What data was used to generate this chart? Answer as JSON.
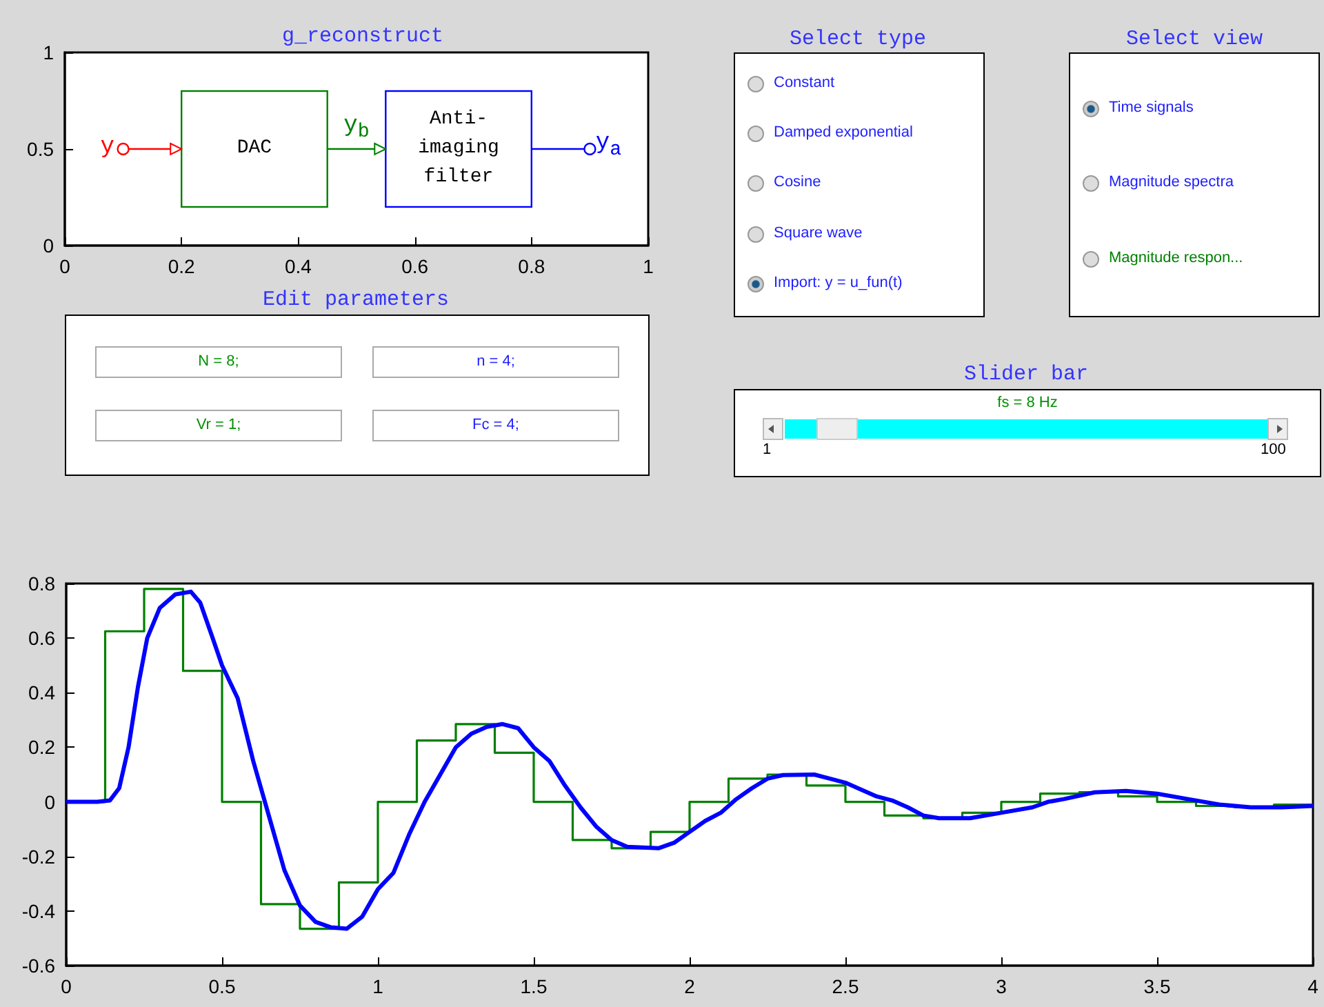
{
  "chart_data": [
    {
      "type": "line",
      "title": "g_reconstruct",
      "xlim": [
        0,
        1
      ],
      "ylim": [
        0,
        1
      ],
      "xticks": [
        0,
        0.2,
        0.4,
        0.6,
        0.8,
        1
      ],
      "yticks": [
        0,
        0.5,
        1
      ],
      "annotations": [
        "y",
        "DAC",
        "y$_{b}$",
        "Anti-\nimaging\nfilter",
        "y$_{a}$"
      ]
    },
    {
      "type": "other",
      "title": "Select type",
      "annotations": [
        "Constant",
        "Damped exponential",
        "Cosine",
        "Square wave",
        "Import: y = u_fun(t)"
      ]
    },
    {
      "type": "other",
      "title": "Select view",
      "annotations": [
        "Time signals",
        "Magnitude spectra",
        "Magnitude respon..."
      ]
    },
    {
      "type": "other",
      "title": "Edit parameters",
      "annotations": [
        "N = 8;",
        "n = 4;",
        "Vr = 1;",
        "Fc = 4;"
      ]
    },
    {
      "type": "other",
      "title": "Slider bar",
      "annotations": [
        "fs = 8 Hz",
        "1",
        "100"
      ]
    },
    {
      "type": "line",
      "xlim": [
        0,
        4
      ],
      "ylim": [
        -0.6,
        0.8
      ],
      "xticks": [
        0,
        0.5,
        1,
        1.5,
        2,
        2.5,
        3,
        3.5,
        4
      ],
      "yticks": [
        -0.6,
        -0.4,
        -0.2,
        0,
        0.2,
        0.4,
        0.6,
        0.8
      ],
      "grid": false,
      "marker": "none",
      "series": [
        {
          "type": "step",
          "color": "#008000",
          "x": [
            0,
            0.125,
            0.25,
            0.375,
            0.5,
            0.625,
            0.75,
            0.875,
            1,
            1.125,
            1.25,
            1.375,
            1.5,
            1.625,
            1.75,
            1.875,
            2,
            2.125,
            2.25,
            2.375,
            2.5,
            2.625,
            2.75,
            2.875,
            3,
            3.125,
            3.25,
            3.375,
            3.5,
            3.625,
            3.75,
            3.875,
            4
          ],
          "values": [
            0,
            0.625,
            0.78,
            0.48,
            0,
            -0.375,
            -0.465,
            -0.295,
            0,
            0.225,
            0.285,
            0.18,
            0,
            -0.14,
            -0.17,
            -0.11,
            0,
            0.085,
            0.1,
            0.06,
            0,
            -0.05,
            -0.06,
            -0.04,
            0,
            0.03,
            0.035,
            0.02,
            0,
            -0.015,
            -0.02,
            -0.01,
            -0.01
          ]
        },
        {
          "type": "line",
          "color": "#0000ff",
          "x": [
            0,
            0.1,
            0.14,
            0.17,
            0.2,
            0.23,
            0.26,
            0.3,
            0.35,
            0.4,
            0.43,
            0.47,
            0.5,
            0.55,
            0.6,
            0.65,
            0.7,
            0.75,
            0.8,
            0.85,
            0.9,
            0.95,
            1,
            1.05,
            1.1,
            1.15,
            1.2,
            1.25,
            1.3,
            1.35,
            1.4,
            1.45,
            1.5,
            1.55,
            1.6,
            1.65,
            1.7,
            1.75,
            1.8,
            1.9,
            1.95,
            2,
            2.05,
            2.1,
            2.15,
            2.2,
            2.25,
            2.3,
            2.4,
            2.45,
            2.5,
            2.55,
            2.6,
            2.65,
            2.7,
            2.75,
            2.8,
            2.9,
            3,
            3.1,
            3.15,
            3.2,
            3.3,
            3.4,
            3.5,
            3.6,
            3.7,
            3.8,
            3.9,
            4
          ],
          "values": [
            0,
            0,
            0.005,
            0.05,
            0.2,
            0.42,
            0.6,
            0.71,
            0.76,
            0.77,
            0.73,
            0.6,
            0.5,
            0.38,
            0.15,
            -0.05,
            -0.25,
            -0.38,
            -0.44,
            -0.46,
            -0.465,
            -0.42,
            -0.32,
            -0.26,
            -0.12,
            0,
            0.1,
            0.2,
            0.25,
            0.275,
            0.285,
            0.27,
            0.2,
            0.15,
            0.06,
            -0.02,
            -0.09,
            -0.14,
            -0.165,
            -0.17,
            -0.15,
            -0.11,
            -0.07,
            -0.04,
            0.01,
            0.05,
            0.085,
            0.098,
            0.1,
            0.085,
            0.07,
            0.045,
            0.02,
            0.005,
            -0.02,
            -0.05,
            -0.06,
            -0.06,
            -0.04,
            -0.02,
            0,
            0.01,
            0.035,
            0.04,
            0.03,
            0.01,
            -0.01,
            -0.02,
            -0.02,
            -0.015
          ]
        }
      ]
    }
  ]
}
